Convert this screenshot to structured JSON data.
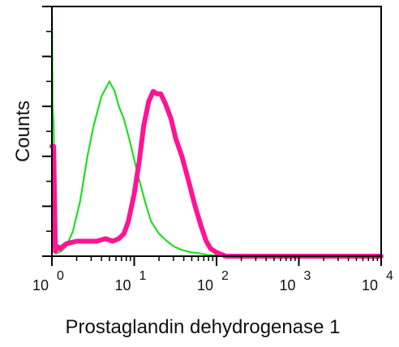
{
  "chart_data": {
    "type": "line",
    "xlabel": "Prostaglandin dehydrogenase 1",
    "ylabel": "Counts",
    "x_scale": "log",
    "xlim": [
      1,
      10000
    ],
    "ylim": [
      0,
      100
    ],
    "grid": false,
    "x_ticks": [
      {
        "base": "10",
        "exp": "0"
      },
      {
        "base": "10",
        "exp": "1"
      },
      {
        "base": "10",
        "exp": "2"
      },
      {
        "base": "10",
        "exp": "3"
      },
      {
        "base": "10",
        "exp": "4"
      }
    ],
    "series": [
      {
        "color": "#22dd22",
        "x": [
          1.0,
          1.02,
          1.05,
          1.08,
          1.12,
          1.2,
          1.3,
          1.5,
          1.8,
          2.2,
          2.7,
          3.2,
          4.0,
          5.0,
          5.8,
          6.5,
          7.5,
          9.0,
          11.0,
          13.5,
          16.0,
          20.0,
          25.0,
          30.0,
          38.0,
          50.0,
          65.0,
          80.0,
          100.0,
          150.0,
          1000.0,
          10000.0
        ],
        "y": [
          100,
          60,
          53,
          2,
          1,
          1.5,
          2,
          4,
          10,
          22,
          40,
          52,
          64,
          70,
          66,
          60,
          55,
          45,
          33,
          22,
          14,
          9,
          6,
          4,
          2.5,
          1.5,
          1,
          0.5,
          0.3,
          0,
          0,
          0
        ]
      },
      {
        "color": "#ff1493",
        "x": [
          1.0,
          1.05,
          1.1,
          1.15,
          1.25,
          1.5,
          2.0,
          2.5,
          3.0,
          3.5,
          4.5,
          5.5,
          6.5,
          7.5,
          8.5,
          10.0,
          11.5,
          13.0,
          15.0,
          17.0,
          19.0,
          21.0,
          24.0,
          28.0,
          32.0,
          38.0,
          45.0,
          55.0,
          65.0,
          75.0,
          85.0,
          100.0,
          130.0,
          1000.0,
          10000.0
        ],
        "y": [
          44,
          44,
          2,
          4,
          3,
          5,
          6,
          6,
          6,
          6,
          7,
          6,
          7,
          9,
          14,
          25,
          38,
          52,
          62,
          66,
          65,
          65,
          61,
          55,
          47,
          40,
          31,
          20,
          12,
          6,
          3,
          1.5,
          0,
          0,
          0
        ]
      }
    ]
  }
}
